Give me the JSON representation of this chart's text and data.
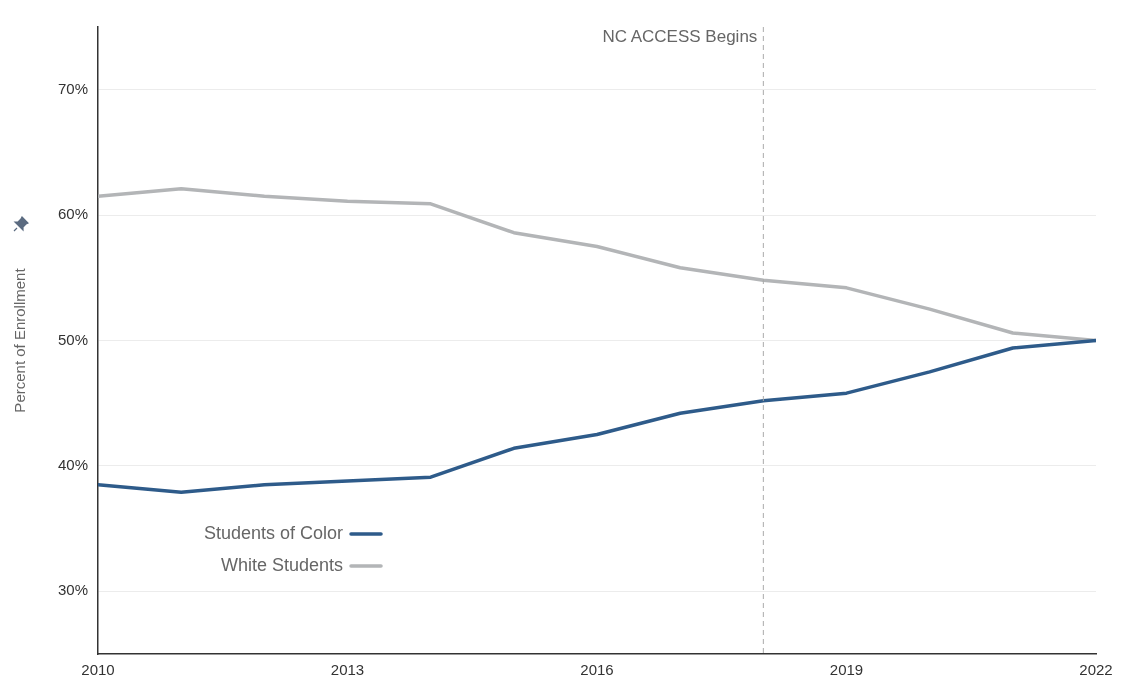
{
  "chart_data": {
    "type": "line",
    "ylabel": "Percent of Enrollment",
    "x": [
      2010,
      2011,
      2012,
      2013,
      2014,
      2015,
      2016,
      2017,
      2018,
      2019,
      2020,
      2021,
      2022
    ],
    "series": [
      {
        "name": "Students of Color",
        "color": "#2e5b8a",
        "values": [
          38.5,
          37.9,
          38.5,
          38.8,
          39.1,
          41.4,
          42.5,
          44.2,
          45.2,
          45.8,
          47.5,
          49.4,
          50.0
        ]
      },
      {
        "name": "White Students",
        "color": "#b3b5b7",
        "values": [
          61.5,
          62.1,
          61.5,
          61.1,
          60.9,
          58.6,
          57.5,
          55.8,
          54.8,
          54.2,
          52.5,
          50.6,
          50.0
        ]
      }
    ],
    "xlim": [
      2010,
      2022
    ],
    "xticks": [
      2010,
      2013,
      2016,
      2019,
      2022
    ],
    "ylim": [
      25,
      75
    ],
    "yticks": [
      {
        "value": 30,
        "label": "30%"
      },
      {
        "value": 40,
        "label": "40%"
      },
      {
        "value": 50,
        "label": "50%"
      },
      {
        "value": 60,
        "label": "60%"
      },
      {
        "value": 70,
        "label": "70%"
      }
    ],
    "ref_lines": [
      {
        "axis": "x",
        "value": 2018,
        "label": "NC ACCESS Begins",
        "color": "#aaaaaa",
        "line_style": "dashed"
      }
    ],
    "grid": "y",
    "legend": "bottom left",
    "marker": "none",
    "line_style": "solid"
  }
}
